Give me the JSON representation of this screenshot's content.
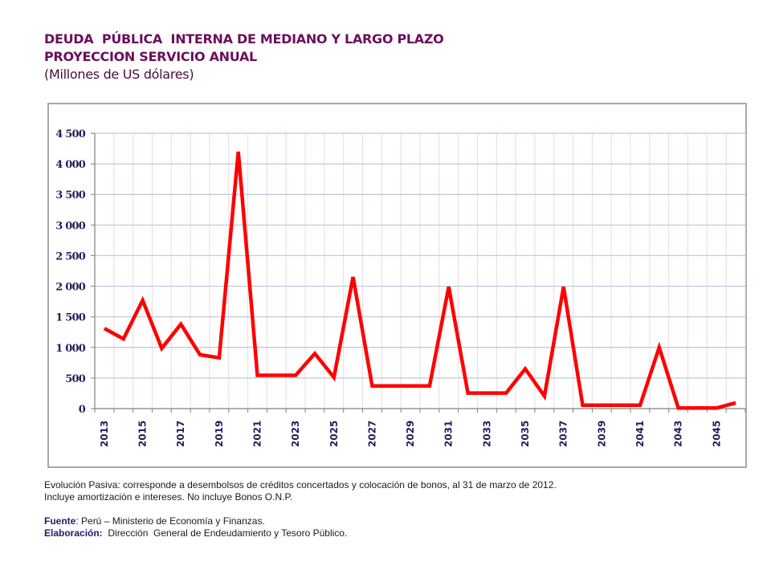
{
  "header": {
    "title_line1": "DEUDA  PÚBLICA  INTERNA DE MEDIANO Y LARGO PLAZO",
    "title_line2": "PROYECCION SERVICIO ANUAL",
    "units": "(Millones de US dólares)"
  },
  "colors": {
    "title": "#6b0f5e",
    "line": "#ff0000",
    "h_grid": "#b8c8dc",
    "v_grid": "#f0d8e0",
    "axis_labels": "#1f1f5c"
  },
  "chart_data": {
    "type": "line",
    "title": "DEUDA PÚBLICA INTERNA DE MEDIANO Y LARGO PLAZO - PROYECCION SERVICIO ANUAL",
    "subtitle": "(Millones de US dólares)",
    "xlabel": "",
    "ylabel": "",
    "ylim": [
      0,
      4500
    ],
    "yticks": [
      0,
      500,
      1000,
      1500,
      2000,
      2500,
      3000,
      3500,
      4000,
      4500
    ],
    "ytick_labels": [
      "0",
      "500",
      "1 000",
      "1 500",
      "2 000",
      "2 500",
      "3 000",
      "3 500",
      "4 000",
      "4 500"
    ],
    "grid": true,
    "legend": "none",
    "categories": [
      "2013",
      "2014",
      "2015",
      "2016",
      "2017",
      "2018",
      "2019",
      "2020",
      "2021",
      "2022",
      "2023",
      "2024",
      "2025",
      "2026",
      "2027",
      "2028",
      "2029",
      "2030",
      "2031",
      "2032",
      "2033",
      "2034",
      "2035",
      "2036",
      "2037",
      "2038",
      "2039",
      "2040",
      "2041",
      "2042",
      "2043",
      "2044",
      "2045",
      "2046"
    ],
    "xtick_labels_shown": [
      "2013",
      "2015",
      "2017",
      "2019",
      "2021",
      "2023",
      "2025",
      "2027",
      "2029",
      "2031",
      "2033",
      "2035",
      "2037",
      "2039",
      "2041",
      "2043",
      "2045"
    ],
    "series": [
      {
        "name": "Servicio anual",
        "values": [
          1310,
          1140,
          1770,
          985,
          1380,
          880,
          830,
          4200,
          545,
          545,
          545,
          900,
          510,
          2150,
          370,
          370,
          370,
          370,
          1990,
          255,
          255,
          255,
          650,
          205,
          1990,
          55,
          55,
          55,
          55,
          1000,
          10,
          10,
          10,
          95
        ]
      }
    ]
  },
  "notes": {
    "line1": "Evolución Pasiva: corresponde a desembolsos de créditos concertados y colocación de bonos, al 31 de marzo de 2012.",
    "line2": "Incluye amortización e intereses. No incluye Bonos O.N.P.",
    "source_label": "Fuente",
    "source_text": ": Perú – Ministerio de Economía y Finanzas.",
    "elaboration_label": "Elaboración:",
    "elaboration_text": "  Dirección  General de Endeudamiento y Tesoro Público."
  }
}
